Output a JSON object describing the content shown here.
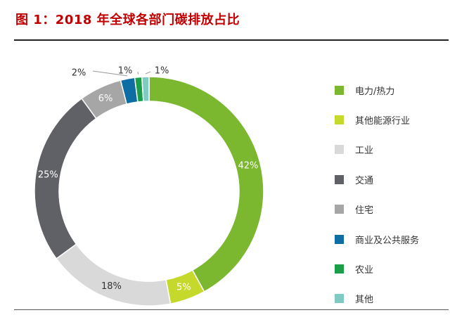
{
  "title": "图 1：2018 年全球各部门碳排放占比",
  "chart_data": {
    "type": "pie",
    "donut": true,
    "title": "",
    "legend_position": "right",
    "slices": [
      {
        "label": "电力/热力",
        "value": 42,
        "display": "42%",
        "color": "#7cb82f",
        "text_color": "#ffffff"
      },
      {
        "label": "其他能源行业",
        "value": 5,
        "display": "5%",
        "color": "#c5d92d",
        "text_color": "#ffffff"
      },
      {
        "label": "工业",
        "value": 18,
        "display": "18%",
        "color": "#d9d9d9",
        "text_color": "#333333"
      },
      {
        "label": "交通",
        "value": 25,
        "display": "25%",
        "color": "#5f6166",
        "text_color": "#ffffff"
      },
      {
        "label": "住宅",
        "value": 6,
        "display": "6%",
        "color": "#a6a6a6",
        "text_color": "#ffffff"
      },
      {
        "label": "商业及公共服务",
        "value": 2,
        "display": "2%",
        "color": "#0e6ea3",
        "text_color": "#333333"
      },
      {
        "label": "农业",
        "value": 1,
        "display": "1%",
        "color": "#1a9e48",
        "text_color": "#333333"
      },
      {
        "label": "其他",
        "value": 1,
        "display": "1%",
        "color": "#7fcac3",
        "text_color": "#333333"
      }
    ]
  }
}
